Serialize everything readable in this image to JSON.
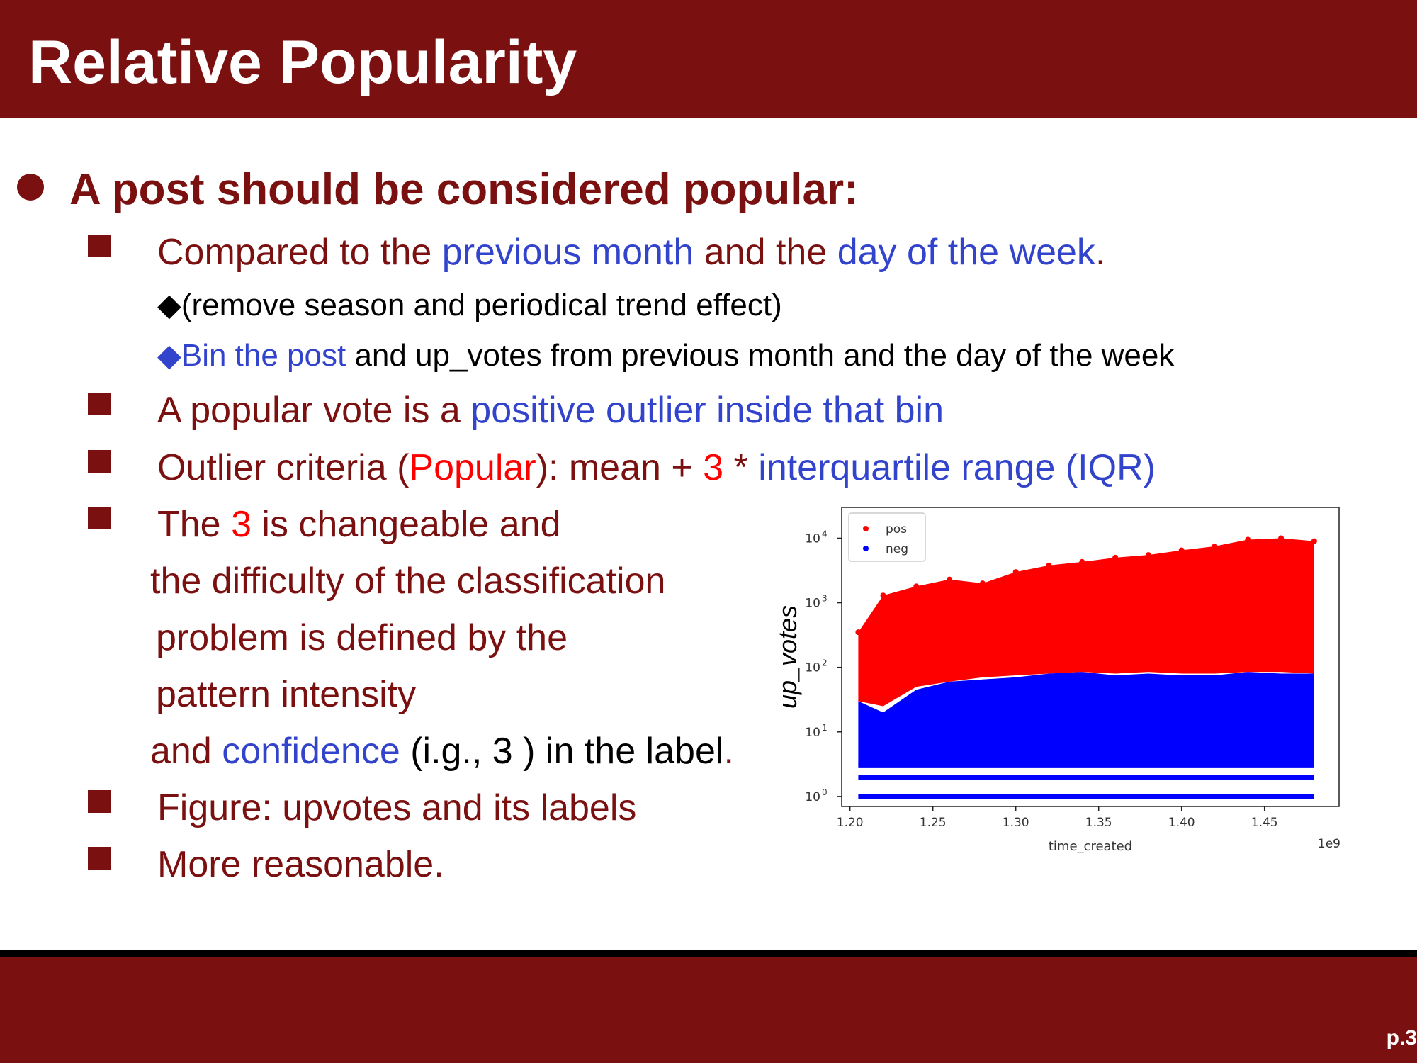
{
  "slide": {
    "title": "Relative Popularity",
    "page_number": "p.3"
  },
  "content": {
    "main_bullet": "A post should be considered popular:",
    "b1": {
      "t1": "Compared to the ",
      "t2": "previous month",
      "t3": " and the ",
      "t4": "day of the week",
      "t5": "."
    },
    "s1": {
      "glyph": "◆",
      "t1": "(remove season and periodical trend effect)"
    },
    "s2": {
      "glyph": "◆",
      "t1": "Bin the post",
      "t2": " and up_votes from previous month and the day of the week"
    },
    "b2": {
      "t1": "A popular vote is a ",
      "t2": "positive outlier inside that bin"
    },
    "b3": {
      "t1": "Outlier criteria (",
      "t2": "Popular",
      "t3": "): mean + ",
      "t4": "3",
      "t5": " * ",
      "t6": "interquartile range (IQR)"
    },
    "b4": {
      "t1": "The ",
      "t2": "3",
      "t3": " is changeable and"
    },
    "c1": "the difficulty of the classification",
    "c2": "problem is defined by the",
    "c3": "pattern intensity",
    "c4": {
      "t1": "and ",
      "t2": "confidence",
      "t3": " (i.g., 3 ) in the label",
      "t4": "."
    },
    "b5": "Figure: upvotes and its labels",
    "b6": "More reasonable."
  },
  "colors": {
    "brand": "#7a1010",
    "accent": "#3344cc",
    "highlight": "#ff0000"
  },
  "chart_data": {
    "type": "scatter",
    "xlabel": "time_created",
    "ylabel": "up_votes",
    "x_offset_label": "1e9",
    "yscale": "log",
    "xlim": [
      1.195,
      1.495
    ],
    "ylim": [
      0.7,
      30000
    ],
    "x_ticks": [
      "1.20",
      "1.25",
      "1.30",
      "1.35",
      "1.40",
      "1.45"
    ],
    "y_ticks": [
      {
        "base": "10",
        "exp": "0"
      },
      {
        "base": "10",
        "exp": "1"
      },
      {
        "base": "10",
        "exp": "2"
      },
      {
        "base": "10",
        "exp": "3"
      },
      {
        "base": "10",
        "exp": "4"
      }
    ],
    "legend": {
      "placement": "top-left",
      "entries": [
        "pos",
        "neg"
      ]
    },
    "series": [
      {
        "name": "pos",
        "color": "#ff0000",
        "x": [
          1.205,
          1.22,
          1.24,
          1.26,
          1.28,
          1.3,
          1.32,
          1.34,
          1.36,
          1.38,
          1.4,
          1.42,
          1.44,
          1.46,
          1.48
        ],
        "y_max": [
          350,
          1300,
          1800,
          2300,
          2000,
          3000,
          3800,
          4300,
          5000,
          5500,
          6500,
          7500,
          9500,
          10000,
          9000
        ],
        "y_min": [
          30,
          25,
          50,
          60,
          70,
          75,
          80,
          85,
          80,
          85,
          80,
          80,
          85,
          85,
          80
        ]
      },
      {
        "name": "neg",
        "color": "#0000ff",
        "x": [
          1.205,
          1.22,
          1.24,
          1.26,
          1.28,
          1.3,
          1.32,
          1.34,
          1.36,
          1.38,
          1.4,
          1.42,
          1.44,
          1.46,
          1.48
        ],
        "y_max": [
          30,
          20,
          45,
          60,
          65,
          70,
          80,
          85,
          75,
          80,
          75,
          75,
          85,
          80,
          80
        ],
        "discrete_levels": [
          1,
          2,
          3
        ]
      }
    ]
  }
}
